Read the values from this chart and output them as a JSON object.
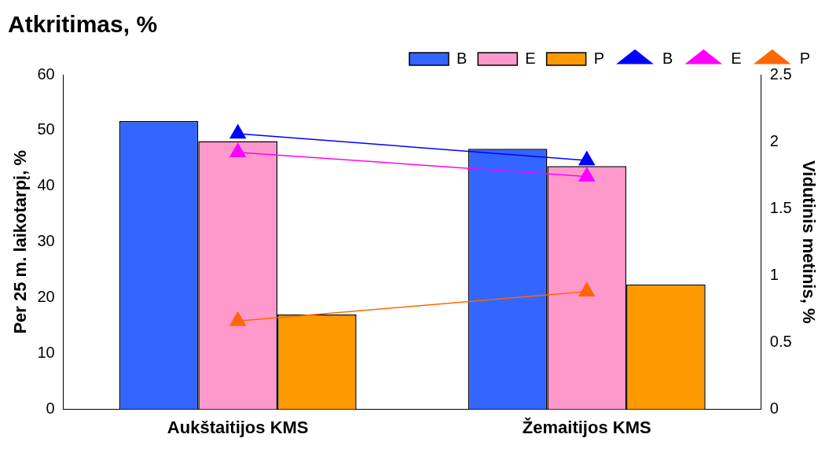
{
  "chart_data": {
    "type": "bar",
    "title": "Atkritimas, %",
    "ylabel": "Per 25 m. laikotarpį, %",
    "y2label": "Vidutinis metinis, %",
    "categories": [
      "Aukštaitijos KMS",
      "Žemaitijos KMS"
    ],
    "series": [
      {
        "name": "B",
        "color": "#3366ff",
        "values": [
          51.7,
          46.7
        ]
      },
      {
        "name": "E",
        "color": "#ff99cc",
        "values": [
          48.1,
          43.6
        ]
      },
      {
        "name": "P",
        "color": "#ff9900",
        "values": [
          17.0,
          22.4
        ]
      },
      {
        "name": "B",
        "type": "line",
        "axis": "y2",
        "color": "#0000ff",
        "values": [
          2.06,
          1.86
        ]
      },
      {
        "name": "E",
        "type": "line",
        "axis": "y2",
        "color": "#ff00ff",
        "values": [
          1.92,
          1.74
        ]
      },
      {
        "name": "P",
        "type": "line",
        "axis": "y2",
        "color": "#ff6600",
        "values": [
          0.66,
          0.88
        ]
      }
    ],
    "ylim": [
      0,
      60
    ],
    "yticks": [
      0,
      10,
      20,
      30,
      40,
      50,
      60
    ],
    "y2lim": [
      0,
      2.5
    ],
    "y2ticks": [
      0,
      0.5,
      1,
      1.5,
      2,
      2.5
    ],
    "grid": false,
    "legend": "top right",
    "marker": "triangle",
    "line_style": "solid"
  }
}
